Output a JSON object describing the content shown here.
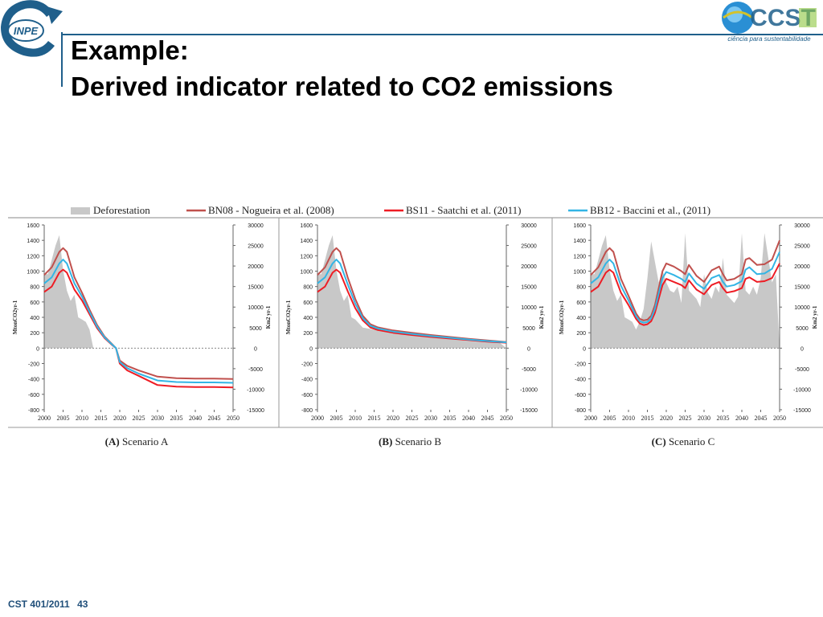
{
  "slide": {
    "title_line1": "Example:",
    "title_line2": "Derived indicator related to CO2 emissions",
    "course": "CST 401/2011",
    "page_number": "43"
  },
  "logos": {
    "left_text": "INPE",
    "right_text": "CCST",
    "right_tagline": "ciência para sustentabilidade"
  },
  "colors": {
    "accent": "#1f5f8b",
    "deforestation": "#c8c8c8",
    "bn08": "#c0504d",
    "bs11": "#ee1c24",
    "bb12": "#33b5e5"
  },
  "legend": {
    "deforestation": "Deforestation",
    "bn08": "BN08 - Nogueira et al. (2008)",
    "bs11": "BS11 - Saatchi et al. (2011)",
    "bb12": "BB12 - Baccini et al., (2011)"
  },
  "chart_data": [
    {
      "type": "line",
      "caption_letter": "(A)",
      "caption": "Scenario A",
      "ylabel_left": "MtonCO2yr-1",
      "ylabel_right": "Km2 yr-1",
      "ylim_left": [
        -800,
        1600
      ],
      "ylim_right": [
        -15000,
        30000
      ],
      "xlim": [
        2000,
        2050
      ],
      "yticks_left": [
        -800,
        -600,
        -400,
        -200,
        0,
        200,
        400,
        600,
        800,
        1000,
        1200,
        1400,
        1600
      ],
      "yticks_right": [
        -15000,
        -10000,
        -5000,
        0,
        5000,
        10000,
        15000,
        20000,
        25000,
        30000
      ],
      "xticks": [
        2000,
        2005,
        2010,
        2015,
        2020,
        2025,
        2030,
        2035,
        2040,
        2045,
        2050
      ],
      "deforestation": {
        "x": [
          2000,
          2001,
          2002,
          2003,
          2004,
          2005,
          2006,
          2007,
          2008,
          2009,
          2010,
          2011,
          2012,
          2013
        ],
        "y": [
          18000,
          18000,
          21500,
          25000,
          27500,
          19000,
          14000,
          11500,
          13000,
          7500,
          7000,
          6400,
          4500,
          0
        ]
      },
      "series": [
        {
          "name": "BN08 - Nogueira et al. (2008)",
          "key": "bn08",
          "x": [
            2000,
            2002,
            2004,
            2005,
            2006,
            2008,
            2010,
            2012,
            2014,
            2016,
            2018,
            2019,
            2020,
            2022,
            2025,
            2030,
            2035,
            2040,
            2045,
            2050
          ],
          "y": [
            950,
            1050,
            1250,
            1300,
            1250,
            920,
            720,
            500,
            300,
            150,
            50,
            0,
            -160,
            -230,
            -290,
            -370,
            -390,
            -395,
            -395,
            -400
          ]
        },
        {
          "name": "BS11 - Saatchi et al. (2011)",
          "key": "bs11",
          "x": [
            2000,
            2002,
            2004,
            2005,
            2006,
            2008,
            2010,
            2012,
            2014,
            2016,
            2018,
            2019,
            2020,
            2022,
            2025,
            2030,
            2035,
            2040,
            2045,
            2050
          ],
          "y": [
            730,
            800,
            980,
            1020,
            980,
            760,
            620,
            440,
            260,
            130,
            40,
            0,
            -200,
            -290,
            -360,
            -480,
            -500,
            -505,
            -505,
            -510
          ]
        },
        {
          "name": "BB12 - Baccini et al., (2011)",
          "key": "bb12",
          "x": [
            2000,
            2002,
            2004,
            2005,
            2006,
            2008,
            2010,
            2012,
            2014,
            2016,
            2018,
            2019,
            2020,
            2022,
            2025,
            2030,
            2035,
            2040,
            2045,
            2050
          ],
          "y": [
            840,
            920,
            1100,
            1150,
            1100,
            840,
            670,
            470,
            280,
            140,
            45,
            0,
            -180,
            -260,
            -330,
            -420,
            -440,
            -445,
            -445,
            -450
          ]
        }
      ]
    },
    {
      "type": "line",
      "caption_letter": "(B)",
      "caption": "Scenario B",
      "ylabel_left": "MtonCO2yr-1",
      "ylabel_right": "Km2 yr-1",
      "ylim_left": [
        -800,
        1600
      ],
      "ylim_right": [
        -15000,
        30000
      ],
      "xlim": [
        2000,
        2050
      ],
      "yticks_left": [
        -800,
        -600,
        -400,
        -200,
        0,
        200,
        400,
        600,
        800,
        1000,
        1200,
        1400,
        1600
      ],
      "yticks_right": [
        -15000,
        -10000,
        -5000,
        0,
        5000,
        10000,
        15000,
        20000,
        25000,
        30000
      ],
      "xticks": [
        2000,
        2005,
        2010,
        2015,
        2020,
        2025,
        2030,
        2035,
        2040,
        2045,
        2050
      ],
      "deforestation": {
        "x": [
          2000,
          2001,
          2002,
          2003,
          2004,
          2005,
          2006,
          2007,
          2008,
          2009,
          2010,
          2012,
          2015,
          2020,
          2030,
          2040,
          2048,
          2050
        ],
        "y": [
          18000,
          18000,
          21500,
          25000,
          27500,
          19000,
          14000,
          11500,
          13000,
          7500,
          7000,
          5000,
          4500,
          4000,
          3000,
          2000,
          1500,
          0
        ]
      },
      "series": [
        {
          "name": "BN08 - Nogueira et al. (2008)",
          "key": "bn08",
          "x": [
            2000,
            2002,
            2004,
            2005,
            2006,
            2008,
            2010,
            2012,
            2014,
            2016,
            2020,
            2025,
            2030,
            2035,
            2040,
            2045,
            2050
          ],
          "y": [
            950,
            1050,
            1250,
            1300,
            1250,
            920,
            640,
            420,
            310,
            270,
            230,
            200,
            170,
            145,
            120,
            100,
            80
          ]
        },
        {
          "name": "BS11 - Saatchi et al. (2011)",
          "key": "bs11",
          "x": [
            2000,
            2002,
            2004,
            2005,
            2006,
            2008,
            2010,
            2012,
            2014,
            2016,
            2020,
            2025,
            2030,
            2035,
            2040,
            2045,
            2050
          ],
          "y": [
            730,
            800,
            980,
            1020,
            980,
            740,
            520,
            360,
            270,
            235,
            200,
            170,
            145,
            125,
            105,
            85,
            70
          ]
        },
        {
          "name": "BB12 - Baccini et al., (2011)",
          "key": "bb12",
          "x": [
            2000,
            2002,
            2004,
            2005,
            2006,
            2008,
            2010,
            2012,
            2014,
            2016,
            2020,
            2025,
            2030,
            2035,
            2040,
            2045,
            2050
          ],
          "y": [
            840,
            920,
            1100,
            1150,
            1100,
            830,
            580,
            390,
            290,
            255,
            215,
            185,
            158,
            135,
            112,
            92,
            75
          ]
        }
      ]
    },
    {
      "type": "line",
      "caption_letter": "(C)",
      "caption": "Scenario C",
      "ylabel_left": "MtonCO2yr-1",
      "ylabel_right": "Km2 yr-1",
      "ylim_left": [
        -800,
        1600
      ],
      "ylim_right": [
        -15000,
        30000
      ],
      "xlim": [
        2000,
        2050
      ],
      "yticks_left": [
        -800,
        -600,
        -400,
        -200,
        0,
        200,
        400,
        600,
        800,
        1000,
        1200,
        1400,
        1600
      ],
      "yticks_right": [
        -15000,
        -10000,
        -5000,
        0,
        5000,
        10000,
        15000,
        20000,
        25000,
        30000
      ],
      "xticks": [
        2000,
        2005,
        2010,
        2015,
        2020,
        2025,
        2030,
        2035,
        2040,
        2045,
        2050
      ],
      "deforestation": {
        "x": [
          2000,
          2001,
          2002,
          2003,
          2004,
          2005,
          2006,
          2007,
          2008,
          2009,
          2010,
          2011,
          2012,
          2013,
          2014,
          2015,
          2016,
          2017,
          2018,
          2019,
          2020,
          2021,
          2022,
          2023,
          2024,
          2025,
          2026,
          2027,
          2028,
          2029,
          2030,
          2031,
          2032,
          2033,
          2034,
          2035,
          2036,
          2037,
          2038,
          2039,
          2040,
          2041,
          2042,
          2043,
          2044,
          2045,
          2046,
          2047,
          2048,
          2049,
          2050
        ],
        "y": [
          18000,
          18000,
          21500,
          25000,
          27500,
          19000,
          14000,
          11500,
          13000,
          7500,
          7000,
          6400,
          4500,
          6500,
          9500,
          17000,
          26000,
          21000,
          16000,
          19000,
          16000,
          14000,
          13500,
          15000,
          11000,
          28000,
          14000,
          13000,
          12000,
          10000,
          18000,
          13500,
          12000,
          15000,
          13500,
          22000,
          13000,
          12000,
          11000,
          12500,
          28000,
          14000,
          13000,
          15000,
          13000,
          17000,
          28000,
          22000,
          16000,
          18000,
          0
        ]
      },
      "series": [
        {
          "name": "BN08 - Nogueira et al. (2008)",
          "key": "bn08",
          "x": [
            2000,
            2002,
            2004,
            2005,
            2006,
            2008,
            2010,
            2012,
            2013,
            2014,
            2015,
            2016,
            2017,
            2018,
            2019,
            2020,
            2022,
            2024,
            2025,
            2026,
            2028,
            2030,
            2032,
            2034,
            2035,
            2036,
            2038,
            2040,
            2041,
            2042,
            2044,
            2046,
            2048,
            2050
          ],
          "y": [
            950,
            1050,
            1250,
            1300,
            1250,
            900,
            680,
            450,
            380,
            360,
            370,
            420,
            560,
            780,
            1000,
            1100,
            1060,
            1000,
            960,
            1080,
            940,
            860,
            1010,
            1060,
            960,
            880,
            900,
            960,
            1150,
            1170,
            1080,
            1090,
            1150,
            1400
          ]
        },
        {
          "name": "BS11 - Saatchi et al. (2011)",
          "key": "bs11",
          "x": [
            2000,
            2002,
            2004,
            2005,
            2006,
            2008,
            2010,
            2012,
            2013,
            2014,
            2015,
            2016,
            2017,
            2018,
            2019,
            2020,
            2022,
            2024,
            2025,
            2026,
            2028,
            2030,
            2032,
            2034,
            2035,
            2036,
            2038,
            2040,
            2041,
            2042,
            2044,
            2046,
            2048,
            2050
          ],
          "y": [
            730,
            800,
            980,
            1020,
            980,
            720,
            560,
            380,
            320,
            300,
            310,
            350,
            460,
            640,
            820,
            900,
            860,
            820,
            780,
            880,
            760,
            700,
            820,
            860,
            780,
            720,
            740,
            780,
            900,
            920,
            860,
            870,
            910,
            1100
          ]
        },
        {
          "name": "BB12 - Baccini et al., (2011)",
          "key": "bb12",
          "x": [
            2000,
            2002,
            2004,
            2005,
            2006,
            2008,
            2010,
            2012,
            2013,
            2014,
            2015,
            2016,
            2017,
            2018,
            2019,
            2020,
            2022,
            2024,
            2025,
            2026,
            2028,
            2030,
            2032,
            2034,
            2035,
            2036,
            2038,
            2040,
            2041,
            2042,
            2044,
            2046,
            2048,
            2050
          ],
          "y": [
            840,
            920,
            1100,
            1150,
            1100,
            810,
            620,
            415,
            350,
            330,
            340,
            385,
            510,
            710,
            910,
            990,
            950,
            900,
            860,
            970,
            840,
            770,
            910,
            950,
            860,
            800,
            820,
            870,
            1020,
            1050,
            960,
            970,
            1030,
            1250
          ]
        }
      ]
    }
  ]
}
